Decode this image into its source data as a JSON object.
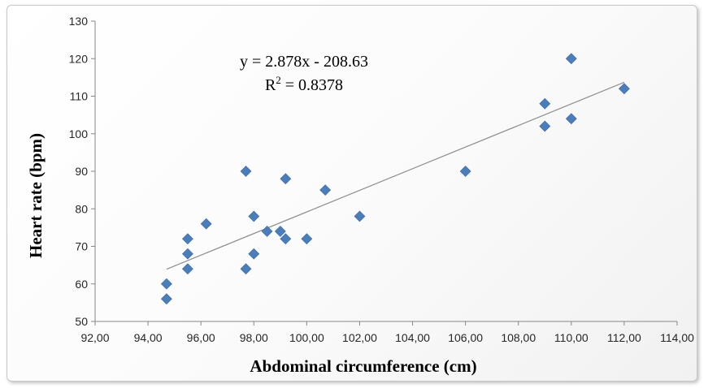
{
  "chart_data": {
    "type": "scatter",
    "xlabel": "Abdominal circumference (cm)",
    "ylabel": "Heart rate (bpm)",
    "xlim": [
      92,
      114
    ],
    "ylim": [
      50,
      130
    ],
    "x_ticks": [
      "92,00",
      "94,00",
      "96,00",
      "98,00",
      "100,00",
      "102,00",
      "104,00",
      "106,00",
      "108,00",
      "110,00",
      "112,00",
      "114,00"
    ],
    "y_ticks": [
      "50",
      "60",
      "70",
      "80",
      "90",
      "100",
      "110",
      "120",
      "130"
    ],
    "grid": false,
    "marker_color": "#4A7EBB",
    "trendline_color": "#8c8c8c",
    "points": [
      {
        "x": 94.7,
        "y": 56
      },
      {
        "x": 94.7,
        "y": 60
      },
      {
        "x": 95.5,
        "y": 64
      },
      {
        "x": 95.5,
        "y": 68
      },
      {
        "x": 95.5,
        "y": 72
      },
      {
        "x": 96.2,
        "y": 76
      },
      {
        "x": 97.7,
        "y": 64
      },
      {
        "x": 97.7,
        "y": 90
      },
      {
        "x": 98.0,
        "y": 68
      },
      {
        "x": 98.0,
        "y": 78
      },
      {
        "x": 98.5,
        "y": 74
      },
      {
        "x": 99.0,
        "y": 74
      },
      {
        "x": 99.2,
        "y": 72
      },
      {
        "x": 99.2,
        "y": 88
      },
      {
        "x": 100.0,
        "y": 72
      },
      {
        "x": 100.7,
        "y": 85
      },
      {
        "x": 102.0,
        "y": 78
      },
      {
        "x": 106.0,
        "y": 90
      },
      {
        "x": 109.0,
        "y": 102
      },
      {
        "x": 109.0,
        "y": 108
      },
      {
        "x": 110.0,
        "y": 104
      },
      {
        "x": 110.0,
        "y": 120
      },
      {
        "x": 112.0,
        "y": 112
      }
    ],
    "trendline": {
      "slope": 2.878,
      "intercept": -208.63,
      "x_range": [
        94.7,
        112.0
      ]
    },
    "annotations": {
      "equation": "y = 2.878x - 208.63",
      "r2_prefix": "R",
      "r2_superscript": "2",
      "r2_value": " = 0.8378"
    }
  }
}
